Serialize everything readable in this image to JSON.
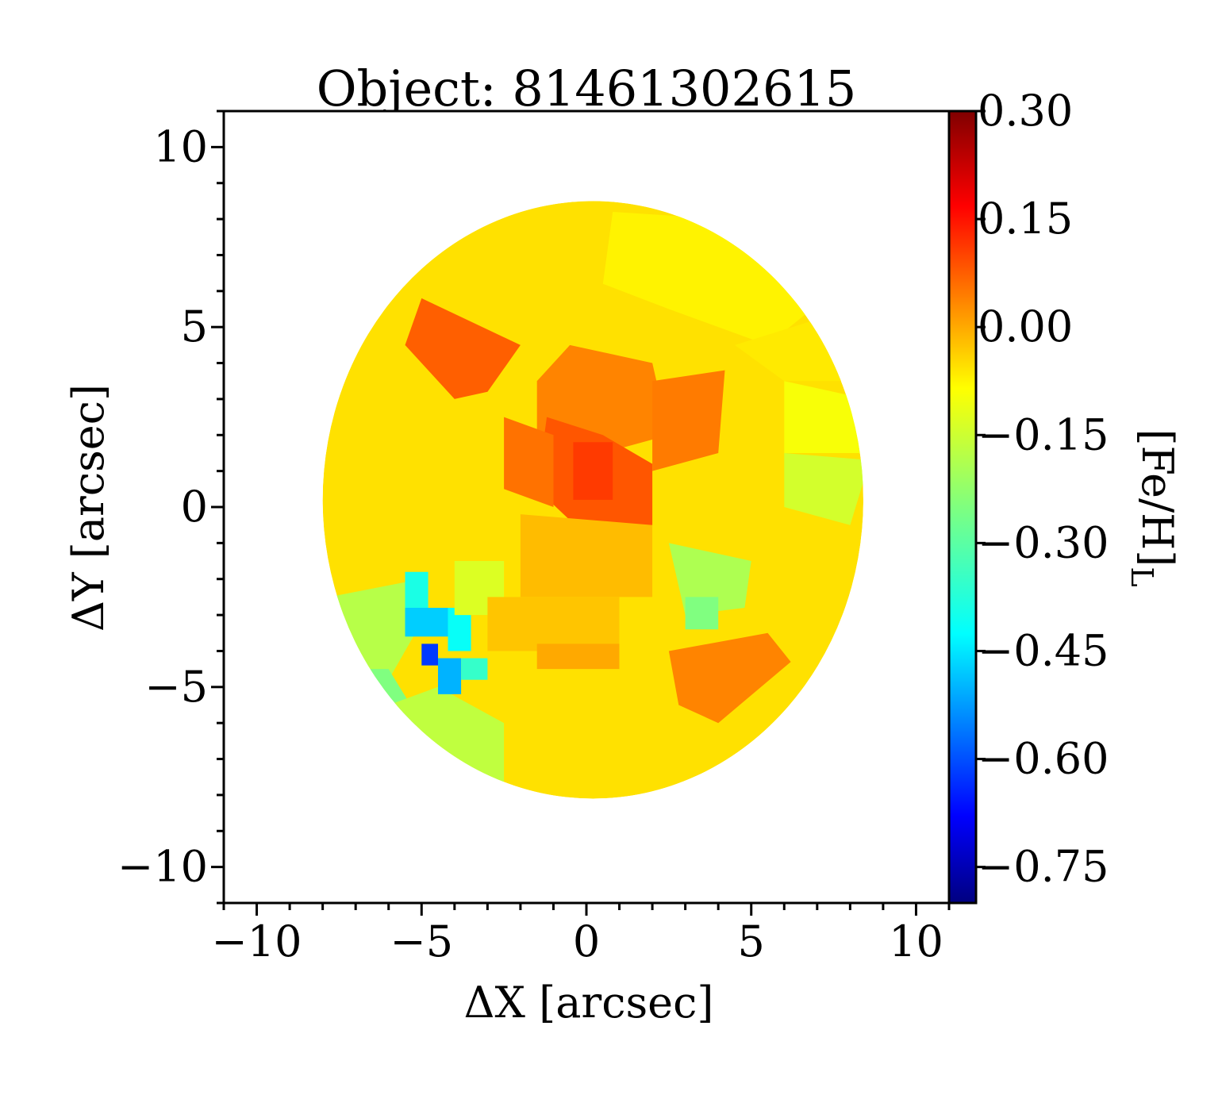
{
  "chart_data": {
    "type": "heatmap",
    "title": "Object: 81461302615",
    "xlabel": "ΔX [arcsec]",
    "ylabel": "ΔY [arcsec]",
    "xlim": [
      -11,
      11
    ],
    "ylim": [
      -11,
      11
    ],
    "x_ticks": [
      -10,
      -5,
      0,
      5,
      10
    ],
    "y_ticks": [
      -10,
      -5,
      0,
      5,
      10
    ],
    "x_tick_labels": [
      "−10",
      "−5",
      "0",
      "5",
      "10"
    ],
    "y_tick_labels": [
      "−10",
      "−5",
      "0",
      "5",
      "10"
    ],
    "colorbar": {
      "label_main": "[Fe/H]",
      "label_sub": "L",
      "range": [
        -0.8,
        0.3
      ],
      "ticks": [
        0.3,
        0.15,
        0.0,
        -0.15,
        -0.3,
        -0.45,
        -0.6,
        -0.75
      ],
      "tick_labels": [
        "0.30",
        "0.15",
        "0.00",
        "−0.15",
        "−0.30",
        "−0.45",
        "−0.60",
        "−0.75"
      ],
      "colormap": "jet"
    },
    "grid": false,
    "ellipse": {
      "center": [
        0.2,
        0.2
      ],
      "semi_x": 8.2,
      "semi_y": 8.3
    },
    "regions": [
      {
        "polygon": [
          [
            -5,
            5.8
          ],
          [
            -2,
            4.5
          ],
          [
            -3,
            3.2
          ],
          [
            -4,
            3.0
          ],
          [
            -5.5,
            4.5
          ]
        ],
        "value": 0.06
      },
      {
        "polygon": [
          [
            0.8,
            8.2
          ],
          [
            4.2,
            8.0
          ],
          [
            7.5,
            6.0
          ],
          [
            5.5,
            4.5
          ],
          [
            2.5,
            5.5
          ],
          [
            0.5,
            6.2
          ]
        ],
        "value": -0.1
      },
      {
        "polygon": [
          [
            4.5,
            4.5
          ],
          [
            8.0,
            5.5
          ],
          [
            8.5,
            3.5
          ],
          [
            6.0,
            3.5
          ]
        ],
        "value": -0.09
      },
      {
        "polygon": [
          [
            6.0,
            3.5
          ],
          [
            8.5,
            3.0
          ],
          [
            8.8,
            1.5
          ],
          [
            6.0,
            1.5
          ]
        ],
        "value": -0.12
      },
      {
        "polygon": [
          [
            6.0,
            1.5
          ],
          [
            8.6,
            1.3
          ],
          [
            8.0,
            -0.5
          ],
          [
            6.0,
            0.0
          ]
        ],
        "value": -0.16
      },
      {
        "polygon": [
          [
            2.5,
            -1.0
          ],
          [
            5.0,
            -1.5
          ],
          [
            4.8,
            -2.8
          ],
          [
            3.0,
            -3.0
          ]
        ],
        "value": -0.2
      },
      {
        "polygon": [
          [
            3.0,
            -2.5
          ],
          [
            4.0,
            -2.5
          ],
          [
            4.0,
            -3.4
          ],
          [
            3.0,
            -3.4
          ]
        ],
        "value": -0.25
      },
      {
        "polygon": [
          [
            2.5,
            -4.0
          ],
          [
            5.5,
            -3.5
          ],
          [
            6.2,
            -4.3
          ],
          [
            4.0,
            -6.0
          ],
          [
            2.8,
            -5.5
          ]
        ],
        "value": 0.02
      },
      {
        "polygon": [
          [
            -7.8,
            -2.5
          ],
          [
            -5.0,
            -2.0
          ],
          [
            -5.0,
            -3.2
          ],
          [
            -6.0,
            -4.8
          ],
          [
            -7.5,
            -4.5
          ]
        ],
        "value": -0.19
      },
      {
        "polygon": [
          [
            -7.5,
            -4.5
          ],
          [
            -6.0,
            -4.5
          ],
          [
            -5.0,
            -6.0
          ],
          [
            -6.5,
            -6.5
          ]
        ],
        "value": -0.25
      },
      {
        "polygon": [
          [
            -6.0,
            -5.5
          ],
          [
            -4.5,
            -5.0
          ],
          [
            -2.5,
            -6.0
          ],
          [
            -2.5,
            -8.0
          ],
          [
            -4.5,
            -7.5
          ]
        ],
        "value": -0.18
      },
      {
        "polygon": [
          [
            -5.5,
            -1.8
          ],
          [
            -4.8,
            -1.8
          ],
          [
            -4.8,
            -2.8
          ],
          [
            -5.5,
            -2.8
          ]
        ],
        "value": -0.36
      },
      {
        "polygon": [
          [
            -5.5,
            -2.8
          ],
          [
            -4.2,
            -2.8
          ],
          [
            -4.2,
            -3.6
          ],
          [
            -5.5,
            -3.6
          ]
        ],
        "value": -0.44
      },
      {
        "polygon": [
          [
            -5.0,
            -3.8
          ],
          [
            -4.5,
            -3.8
          ],
          [
            -4.5,
            -4.4
          ],
          [
            -5.0,
            -4.4
          ]
        ],
        "value": -0.6
      },
      {
        "polygon": [
          [
            -4.5,
            -4.2
          ],
          [
            -3.8,
            -4.2
          ],
          [
            -3.8,
            -5.2
          ],
          [
            -4.5,
            -5.2
          ]
        ],
        "value": -0.47
      },
      {
        "polygon": [
          [
            -4.2,
            -2.8
          ],
          [
            -3.5,
            -2.8
          ],
          [
            -3.5,
            -4.0
          ],
          [
            -4.2,
            -4.0
          ]
        ],
        "value": -0.38
      },
      {
        "polygon": [
          [
            -3.8,
            -4.2
          ],
          [
            -3.0,
            -4.2
          ],
          [
            -3.0,
            -4.8
          ],
          [
            -3.8,
            -4.8
          ]
        ],
        "value": -0.33
      },
      {
        "polygon": [
          [
            -4.0,
            -1.5
          ],
          [
            -2.5,
            -1.5
          ],
          [
            -2.5,
            -3.0
          ],
          [
            -4.0,
            -3.0
          ]
        ],
        "value": -0.15
      },
      {
        "polygon": [
          [
            -0.5,
            4.5
          ],
          [
            2.0,
            4.0
          ],
          [
            2.5,
            2.0
          ],
          [
            0.5,
            1.5
          ],
          [
            -1.5,
            2.0
          ],
          [
            -1.5,
            3.5
          ]
        ],
        "value": 0.02
      },
      {
        "polygon": [
          [
            -1.2,
            2.5
          ],
          [
            0.5,
            2.0
          ],
          [
            2.0,
            1.2
          ],
          [
            2.0,
            -0.5
          ],
          [
            0.0,
            -0.8
          ],
          [
            -1.5,
            0.5
          ]
        ],
        "value": 0.07
      },
      {
        "polygon": [
          [
            -0.4,
            1.8
          ],
          [
            0.8,
            1.8
          ],
          [
            0.8,
            0.2
          ],
          [
            -0.4,
            0.2
          ]
        ],
        "value": 0.1
      },
      {
        "polygon": [
          [
            -2.5,
            2.5
          ],
          [
            -1.0,
            2.0
          ],
          [
            -1.0,
            0.0
          ],
          [
            -2.5,
            0.5
          ]
        ],
        "value": 0.04
      },
      {
        "polygon": [
          [
            2.0,
            3.5
          ],
          [
            4.2,
            3.8
          ],
          [
            4.0,
            1.5
          ],
          [
            2.0,
            1.0
          ]
        ],
        "value": 0.03
      },
      {
        "polygon": [
          [
            -2.0,
            -0.2
          ],
          [
            2.0,
            -0.5
          ],
          [
            2.0,
            -2.5
          ],
          [
            -2.0,
            -2.5
          ]
        ],
        "value": -0.04
      },
      {
        "polygon": [
          [
            -3.0,
            -2.5
          ],
          [
            1.0,
            -2.5
          ],
          [
            1.0,
            -4.0
          ],
          [
            -3.0,
            -4.0
          ]
        ],
        "value": -0.05
      },
      {
        "polygon": [
          [
            -1.5,
            -3.8
          ],
          [
            1.0,
            -3.8
          ],
          [
            1.0,
            -4.5
          ],
          [
            -1.5,
            -4.5
          ]
        ],
        "value": -0.02
      }
    ]
  }
}
